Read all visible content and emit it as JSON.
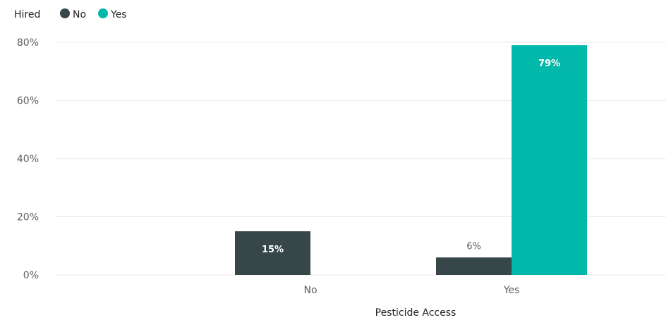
{
  "chart_data": {
    "type": "bar",
    "legend_title": "Hired",
    "legend_position": "top-left",
    "xlabel": "Pesticide Access",
    "ylabel": "",
    "categories": [
      "No",
      "Yes"
    ],
    "series": [
      {
        "name": "No",
        "color": "#374649",
        "values": [
          15,
          6
        ]
      },
      {
        "name": "Yes",
        "color": "#01b8aa",
        "values": [
          null,
          79
        ]
      }
    ],
    "data_labels": [
      [
        "15%",
        "6%"
      ],
      [
        null,
        "79%"
      ]
    ],
    "yticks": [
      "0%",
      "20%",
      "40%",
      "60%",
      "80%"
    ],
    "ytick_values": [
      0,
      20,
      40,
      60,
      80
    ],
    "ylim": [
      0,
      80
    ],
    "grid": true
  }
}
